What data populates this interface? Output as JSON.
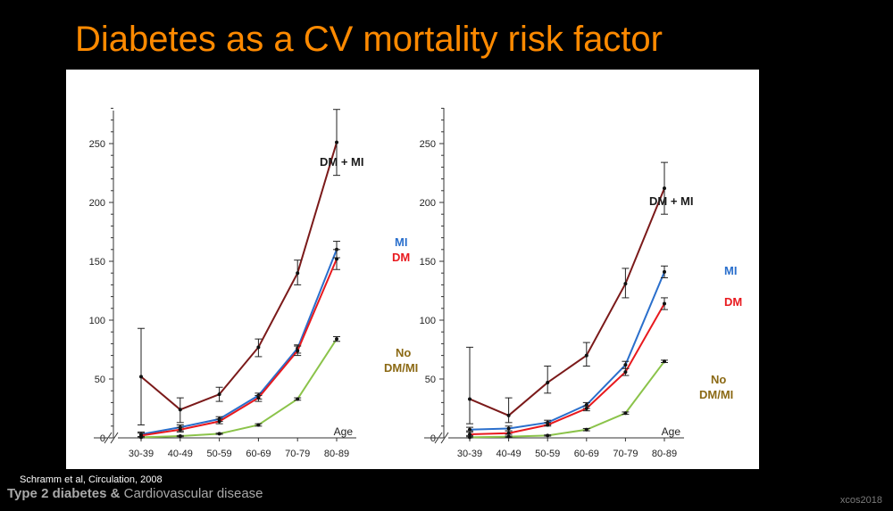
{
  "title": "Diabetes as a CV mortality risk factor",
  "citation": "Schramm et al, Circulation, 2008",
  "footer": {
    "bold": "Type 2 diabetes &",
    "normal": " Cardiovascular disease"
  },
  "brand": "xcos2018",
  "colors": {
    "dm_mi": "#7b1a1a",
    "mi": "#2a6fcc",
    "dm": "#e8191e",
    "none": "#8bc34a",
    "title": "#ff8a00",
    "none_label": "#8b6914"
  },
  "chart_data": [
    {
      "type": "line",
      "categories": [
        "30-39",
        "40-49",
        "50-59",
        "60-69",
        "70-79",
        "80-89"
      ],
      "xlabel": "Age",
      "ylim": [
        0,
        280
      ],
      "yticks": [
        0,
        50,
        100,
        150,
        200,
        250
      ],
      "grid": false,
      "series": [
        {
          "name": "DM + MI",
          "color": "#7b1a1a",
          "values": [
            52,
            24,
            37,
            77,
            140,
            251
          ],
          "err": [
            [
              11,
              93
            ],
            [
              13,
              34
            ],
            [
              31,
              43
            ],
            [
              69,
              84
            ],
            [
              130,
              151
            ],
            [
              223,
              279
            ]
          ]
        },
        {
          "name": "MI",
          "color": "#2a6fcc",
          "values": [
            3,
            9,
            16,
            36,
            76,
            160
          ],
          "err": [
            [
              1,
              5
            ],
            [
              6,
              11
            ],
            [
              14,
              18
            ],
            [
              33,
              38
            ],
            [
              72,
              79
            ],
            [
              153,
              167
            ]
          ]
        },
        {
          "name": "DM",
          "color": "#e8191e",
          "values": [
            2,
            7,
            14,
            34,
            74,
            152
          ],
          "err": [
            [
              1,
              4
            ],
            [
              5,
              9
            ],
            [
              12,
              16
            ],
            [
              31,
              36
            ],
            [
              70,
              78
            ],
            [
              143,
              160
            ]
          ]
        },
        {
          "name": "No DM/MI",
          "color": "#8bc34a",
          "values": [
            0.5,
            1.5,
            3.5,
            11,
            33,
            84
          ],
          "err": [
            [
              0,
              1
            ],
            [
              1,
              2
            ],
            [
              3,
              4
            ],
            [
              10,
              12
            ],
            [
              32,
              34
            ],
            [
              82,
              86
            ]
          ]
        }
      ],
      "annotations": [
        "DM + MI",
        "MI",
        "DM",
        "No",
        "DM/MI"
      ]
    },
    {
      "type": "line",
      "categories": [
        "30-39",
        "40-49",
        "50-59",
        "60-69",
        "70-79",
        "80-89"
      ],
      "xlabel": "Age",
      "ylim": [
        0,
        280
      ],
      "yticks": [
        0,
        50,
        100,
        150,
        200,
        250
      ],
      "grid": false,
      "series": [
        {
          "name": "DM + MI",
          "color": "#7b1a1a",
          "values": [
            33,
            19,
            47,
            70,
            131,
            212
          ],
          "err": [
            [
              12,
              77
            ],
            [
              13,
              34
            ],
            [
              38,
              61
            ],
            [
              61,
              81
            ],
            [
              119,
              144
            ],
            [
              190,
              234
            ]
          ]
        },
        {
          "name": "MI",
          "color": "#2a6fcc",
          "values": [
            7,
            8,
            13,
            28,
            62,
            141
          ],
          "err": [
            [
              6,
              9
            ],
            [
              6,
              10
            ],
            [
              11,
              15
            ],
            [
              25,
              30
            ],
            [
              59,
              65
            ],
            [
              136,
              146
            ]
          ]
        },
        {
          "name": "DM",
          "color": "#e8191e",
          "values": [
            3,
            4,
            11,
            25,
            56,
            114
          ],
          "err": [
            [
              2,
              5
            ],
            [
              3,
              6
            ],
            [
              10,
              13
            ],
            [
              23,
              27
            ],
            [
              53,
              59
            ],
            [
              109,
              119
            ]
          ]
        },
        {
          "name": "No DM/MI",
          "color": "#8bc34a",
          "values": [
            0.5,
            1,
            2,
            7,
            21,
            65
          ],
          "err": [
            [
              0,
              1
            ],
            [
              0.5,
              1.5
            ],
            [
              1.5,
              2.5
            ],
            [
              6,
              8
            ],
            [
              20,
              22
            ],
            [
              64,
              66
            ]
          ]
        }
      ],
      "annotations": [
        "DM + MI",
        "MI",
        "DM",
        "No",
        "DM/MI"
      ]
    }
  ]
}
